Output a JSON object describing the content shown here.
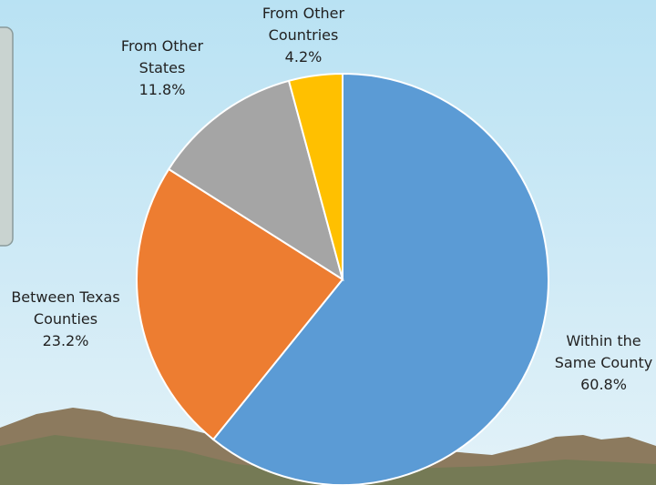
{
  "chart_data": {
    "type": "pie",
    "categories": [
      "Within the Same County",
      "Between Texas Counties",
      "From Other States",
      "From Other Countries"
    ],
    "values": [
      60.8,
      23.2,
      11.8,
      4.2
    ],
    "value_labels": [
      "60.8%",
      "23.2%",
      "11.8%",
      "4.2%"
    ],
    "colors": [
      "#5b9bd5",
      "#ed7d31",
      "#a5a5a5",
      "#ffc000"
    ],
    "start_angle": 0,
    "direction": "clockwise"
  }
}
